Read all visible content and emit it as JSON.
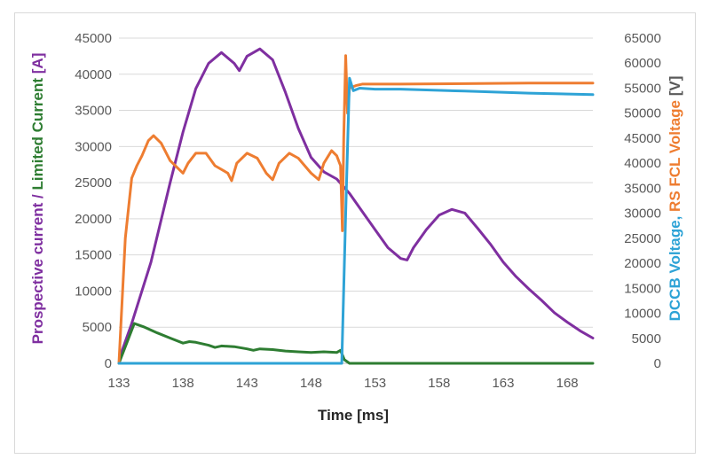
{
  "chart_data": {
    "type": "line",
    "title": "",
    "xlabel": "Time [ms]",
    "ylabel_left": {
      "parts": [
        {
          "text": "Prospective current",
          "color": "#7f2fa0"
        },
        {
          "text": " / ",
          "color": "#7f2fa0"
        },
        {
          "text": "Limited Current",
          "color": "#2e7d32"
        },
        {
          "text": " [A]",
          "color": "#7f2fa0"
        }
      ]
    },
    "ylabel_right": {
      "parts": [
        {
          "text": "DCCB Voltage",
          "color": "#2ea3d6"
        },
        {
          "text": ", ",
          "color": "#2ea3d6"
        },
        {
          "text": "RS FCL Voltage",
          "color": "#ee7d31"
        },
        {
          "text": " [V]",
          "color": "#595959"
        }
      ]
    },
    "xlim": [
      133,
      170
    ],
    "ylim_left": [
      0,
      45000
    ],
    "ylim_right": [
      0,
      65000
    ],
    "x_ticks": [
      "133",
      "138",
      "143",
      "148",
      "153",
      "158",
      "163",
      "168"
    ],
    "y_left_ticks": [
      "0",
      "5000",
      "10000",
      "15000",
      "20000",
      "25000",
      "30000",
      "35000",
      "40000",
      "45000"
    ],
    "y_right_ticks": [
      "0",
      "5000",
      "10000",
      "15000",
      "20000",
      "25000",
      "30000",
      "35000",
      "40000",
      "45000",
      "50000",
      "55000",
      "60000",
      "65000"
    ],
    "grid": "horizontal",
    "legend": "none",
    "series": [
      {
        "color": "#7f2fa0",
        "axis": "left",
        "points": [
          [
            133.1,
            1000
          ],
          [
            134,
            5500
          ],
          [
            135.5,
            14000
          ],
          [
            137,
            25000
          ],
          [
            138,
            32000
          ],
          [
            139,
            38000
          ],
          [
            140,
            41500
          ],
          [
            141,
            43000
          ],
          [
            142,
            41500
          ],
          [
            142.4,
            40500
          ],
          [
            143,
            42500
          ],
          [
            144,
            43500
          ],
          [
            145,
            42000
          ],
          [
            146,
            37500
          ],
          [
            147,
            32500
          ],
          [
            148,
            28500
          ],
          [
            149,
            26500
          ],
          [
            150,
            25500
          ],
          [
            151,
            23500
          ],
          [
            152,
            21000
          ],
          [
            153,
            18500
          ],
          [
            154,
            16000
          ],
          [
            155,
            14500
          ],
          [
            155.5,
            14300
          ],
          [
            156,
            16000
          ],
          [
            157,
            18500
          ],
          [
            158,
            20500
          ],
          [
            159,
            21300
          ],
          [
            160,
            20800
          ],
          [
            161,
            18700
          ],
          [
            162,
            16500
          ],
          [
            163,
            14000
          ],
          [
            164,
            12000
          ],
          [
            165,
            10300
          ],
          [
            166,
            8700
          ],
          [
            167,
            7000
          ],
          [
            168,
            5700
          ],
          [
            169,
            4500
          ],
          [
            170,
            3500
          ]
        ]
      },
      {
        "color": "#2e7d32",
        "axis": "left",
        "points": [
          [
            133,
            0
          ],
          [
            134.2,
            5500
          ],
          [
            135,
            5000
          ],
          [
            136,
            4200
          ],
          [
            137,
            3500
          ],
          [
            138,
            2800
          ],
          [
            138.5,
            3000
          ],
          [
            139,
            2900
          ],
          [
            140,
            2500
          ],
          [
            140.5,
            2200
          ],
          [
            141,
            2400
          ],
          [
            142,
            2300
          ],
          [
            143,
            2000
          ],
          [
            143.5,
            1800
          ],
          [
            144,
            2000
          ],
          [
            145,
            1900
          ],
          [
            146,
            1700
          ],
          [
            147,
            1600
          ],
          [
            148,
            1500
          ],
          [
            149,
            1600
          ],
          [
            150,
            1500
          ],
          [
            150.3,
            1800
          ],
          [
            150.6,
            500
          ],
          [
            151,
            0
          ],
          [
            170,
            0
          ]
        ]
      },
      {
        "color": "#ee7d31",
        "axis": "right",
        "points": [
          [
            133,
            0
          ],
          [
            133.5,
            25000
          ],
          [
            134,
            37000
          ],
          [
            134.4,
            39500
          ],
          [
            134.8,
            41500
          ],
          [
            135.3,
            44500
          ],
          [
            135.7,
            45500
          ],
          [
            136.3,
            44000
          ],
          [
            137,
            40500
          ],
          [
            138,
            38000
          ],
          [
            138.4,
            40000
          ],
          [
            139,
            42000
          ],
          [
            139.8,
            42000
          ],
          [
            140.5,
            39500
          ],
          [
            141.5,
            38000
          ],
          [
            141.8,
            36500
          ],
          [
            142.2,
            40000
          ],
          [
            143,
            42000
          ],
          [
            143.8,
            41000
          ],
          [
            144.5,
            38000
          ],
          [
            145,
            36700
          ],
          [
            145.5,
            40000
          ],
          [
            146.3,
            42000
          ],
          [
            147,
            41000
          ],
          [
            148,
            38000
          ],
          [
            148.6,
            36700
          ],
          [
            149,
            40000
          ],
          [
            149.6,
            42500
          ],
          [
            150,
            41500
          ],
          [
            150.3,
            39500
          ],
          [
            150.45,
            26500
          ],
          [
            150.55,
            45000
          ],
          [
            150.7,
            61500
          ],
          [
            150.85,
            50000
          ],
          [
            151,
            55000
          ],
          [
            151.5,
            55500
          ],
          [
            152,
            55800
          ],
          [
            155,
            55800
          ],
          [
            160,
            55900
          ],
          [
            165,
            56000
          ],
          [
            170,
            56000
          ]
        ]
      },
      {
        "color": "#2ea3d6",
        "axis": "right",
        "points": [
          [
            133,
            0
          ],
          [
            150.4,
            0
          ],
          [
            150.7,
            30000
          ],
          [
            151,
            57000
          ],
          [
            151.3,
            54500
          ],
          [
            151.8,
            55000
          ],
          [
            153,
            54800
          ],
          [
            155,
            54800
          ],
          [
            160,
            54400
          ],
          [
            165,
            54000
          ],
          [
            170,
            53700
          ]
        ]
      }
    ]
  }
}
